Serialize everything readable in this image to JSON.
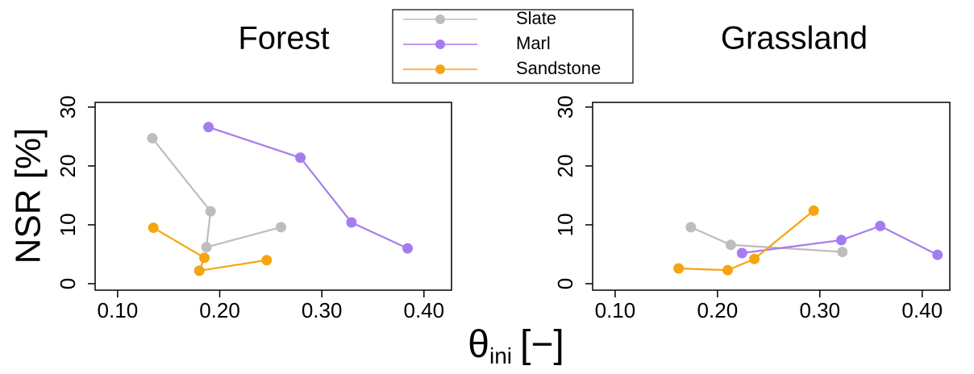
{
  "chart_data": [
    {
      "type": "line",
      "title": "Forest",
      "ylabel": "NSR [%]",
      "xlabel": "θ",
      "xlabel_subscript": "ini",
      "xlabel_unit": "[−]",
      "xlim": [
        0.078,
        0.427
      ],
      "ylim": [
        -1.1,
        30.8
      ],
      "xticks": [
        {
          "value": 0.1,
          "label": "0.10"
        },
        {
          "value": 0.2,
          "label": "0.20"
        },
        {
          "value": 0.3,
          "label": "0.30"
        },
        {
          "value": 0.4,
          "label": "0.40"
        }
      ],
      "yticks": [
        0,
        10,
        20,
        30
      ],
      "series": [
        {
          "name": "Slate",
          "color": "#bdbdbd",
          "x": [
            0.134,
            0.191,
            0.187,
            0.26
          ],
          "values": [
            24.7,
            12.3,
            6.2,
            9.6
          ]
        },
        {
          "name": "Marl",
          "color": "#a57cf0",
          "x": [
            0.189,
            0.279,
            0.329,
            0.384
          ],
          "values": [
            26.6,
            21.4,
            10.4,
            6.0
          ]
        },
        {
          "name": "Sandstone",
          "color": "#f5a511",
          "x": [
            0.135,
            0.185,
            0.18,
            0.246
          ],
          "values": [
            9.5,
            4.4,
            2.2,
            4.0
          ]
        }
      ]
    },
    {
      "type": "line",
      "title": "Grassland",
      "xlim": [
        0.078,
        0.427
      ],
      "ylim": [
        -1.1,
        30.8
      ],
      "xticks": [
        {
          "value": 0.1,
          "label": "0.10"
        },
        {
          "value": 0.2,
          "label": "0.20"
        },
        {
          "value": 0.3,
          "label": "0.30"
        },
        {
          "value": 0.4,
          "label": "0.40"
        }
      ],
      "yticks": [
        0,
        10,
        20,
        30
      ],
      "series": [
        {
          "color": "#bdbdbd",
          "x": [
            0.174,
            0.213,
            0.322
          ],
          "values": [
            9.6,
            6.6,
            5.4
          ]
        },
        {
          "color": "#a57cf0",
          "x": [
            0.224,
            0.321,
            0.359,
            0.415
          ],
          "values": [
            5.2,
            7.4,
            9.8,
            4.9
          ]
        },
        {
          "color": "#f5a511",
          "x": [
            0.162,
            0.21,
            0.236,
            0.294
          ],
          "values": [
            2.6,
            2.3,
            4.2,
            12.4
          ]
        }
      ]
    }
  ]
}
